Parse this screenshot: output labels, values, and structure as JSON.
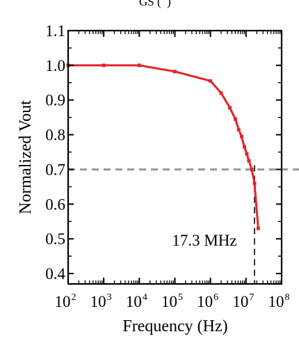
{
  "header_fragment": "GS (  )",
  "chart_data": {
    "type": "line",
    "xscale": "log",
    "xlabel": "Frequency (Hz)",
    "ylabel": "Normalized Vout",
    "xlim": [
      100,
      100000000
    ],
    "ylim": [
      0.37,
      1.1
    ],
    "x_ticks": [
      {
        "value": 100,
        "base": "10",
        "exp": "2"
      },
      {
        "value": 1000,
        "base": "10",
        "exp": "3"
      },
      {
        "value": 10000,
        "base": "10",
        "exp": "4"
      },
      {
        "value": 100000,
        "base": "10",
        "exp": "5"
      },
      {
        "value": 1000000,
        "base": "10",
        "exp": "6"
      },
      {
        "value": 10000000,
        "base": "10",
        "exp": "7"
      },
      {
        "value": 100000000,
        "base": "10",
        "exp": "8"
      }
    ],
    "y_ticks": [
      {
        "value": 0.4,
        "label": "0.4"
      },
      {
        "value": 0.5,
        "label": "0.5"
      },
      {
        "value": 0.6,
        "label": "0.6"
      },
      {
        "value": 0.7,
        "label": "0.7"
      },
      {
        "value": 0.8,
        "label": "0.8"
      },
      {
        "value": 0.9,
        "label": "0.9"
      },
      {
        "value": 1.0,
        "label": "1.0"
      },
      {
        "value": 1.1,
        "label": "1.1"
      }
    ],
    "series": [
      {
        "color": "#e0262c",
        "points": [
          [
            100,
            1.0
          ],
          [
            1000,
            1.0
          ],
          [
            10000,
            1.0
          ],
          [
            100000,
            0.982
          ],
          [
            1000000,
            0.955
          ],
          [
            2000000,
            0.92
          ],
          [
            3500000,
            0.878
          ],
          [
            5000000,
            0.845
          ],
          [
            6200000,
            0.815
          ],
          [
            7500000,
            0.795
          ],
          [
            9000000,
            0.765
          ],
          [
            10500000,
            0.745
          ],
          [
            12000000,
            0.725
          ],
          [
            14500000,
            0.7
          ],
          [
            17300000,
            0.66
          ],
          [
            22000000,
            0.53
          ]
        ]
      }
    ],
    "reference_line": {
      "y": 0.7,
      "color": "#999999",
      "style": "dashed"
    },
    "cutoff": {
      "x": 17300000,
      "label": "17.3 MHz",
      "color": "#000000",
      "style": "dashed"
    }
  }
}
